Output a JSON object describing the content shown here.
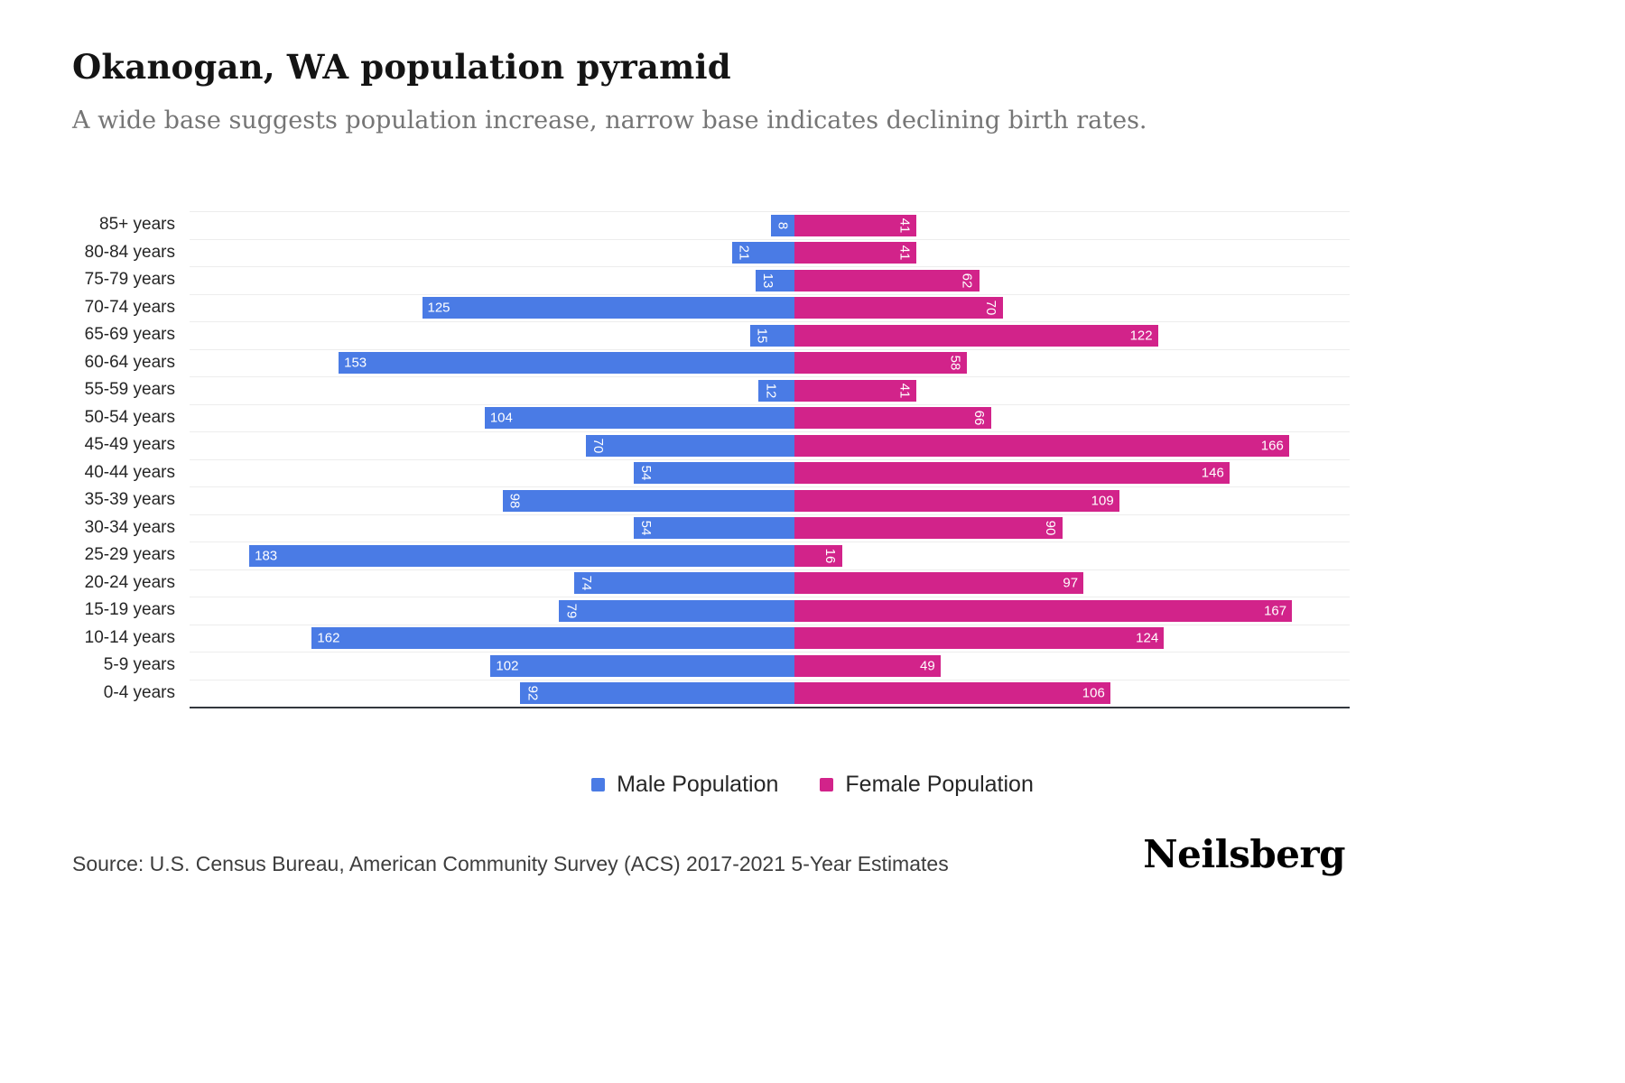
{
  "header": {
    "title": "Okanogan, WA population pyramid",
    "subtitle": "A wide base suggests population increase, narrow base indicates declining birth rates."
  },
  "chart_data": {
    "type": "bar",
    "variant": "population-pyramid",
    "title": "Okanogan, WA population pyramid",
    "categories": [
      "85+ years",
      "80-84 years",
      "75-79 years",
      "70-74 years",
      "65-69 years",
      "60-64 years",
      "55-59 years",
      "50-54 years",
      "45-49 years",
      "40-44 years",
      "35-39 years",
      "30-34 years",
      "25-29 years",
      "20-24 years",
      "15-19 years",
      "10-14 years",
      "5-9 years",
      "0-4 years"
    ],
    "series": [
      {
        "name": "Male Population",
        "side": "left",
        "color": "#4a7be5",
        "values": [
          8,
          21,
          13,
          125,
          15,
          153,
          12,
          104,
          70,
          54,
          98,
          54,
          183,
          74,
          79,
          162,
          102,
          92
        ],
        "rotated_labels": [
          true,
          true,
          true,
          false,
          true,
          false,
          true,
          false,
          true,
          true,
          true,
          true,
          false,
          true,
          true,
          false,
          false,
          true
        ]
      },
      {
        "name": "Female Population",
        "side": "right",
        "color": "#d2238a",
        "values": [
          41,
          41,
          62,
          70,
          122,
          58,
          41,
          66,
          166,
          146,
          109,
          90,
          16,
          97,
          167,
          124,
          49,
          106
        ],
        "rotated_labels": [
          true,
          true,
          true,
          true,
          false,
          true,
          true,
          true,
          false,
          false,
          false,
          true,
          true,
          false,
          false,
          false,
          false,
          false
        ]
      }
    ],
    "xlim": [
      0,
      200
    ],
    "grid": true,
    "legend_position": "bottom"
  },
  "footer": {
    "source": "Source: U.S. Census Bureau, American Community Survey (ACS) 2017-2021 5-Year Estimates",
    "brand": "Neilsberg"
  }
}
